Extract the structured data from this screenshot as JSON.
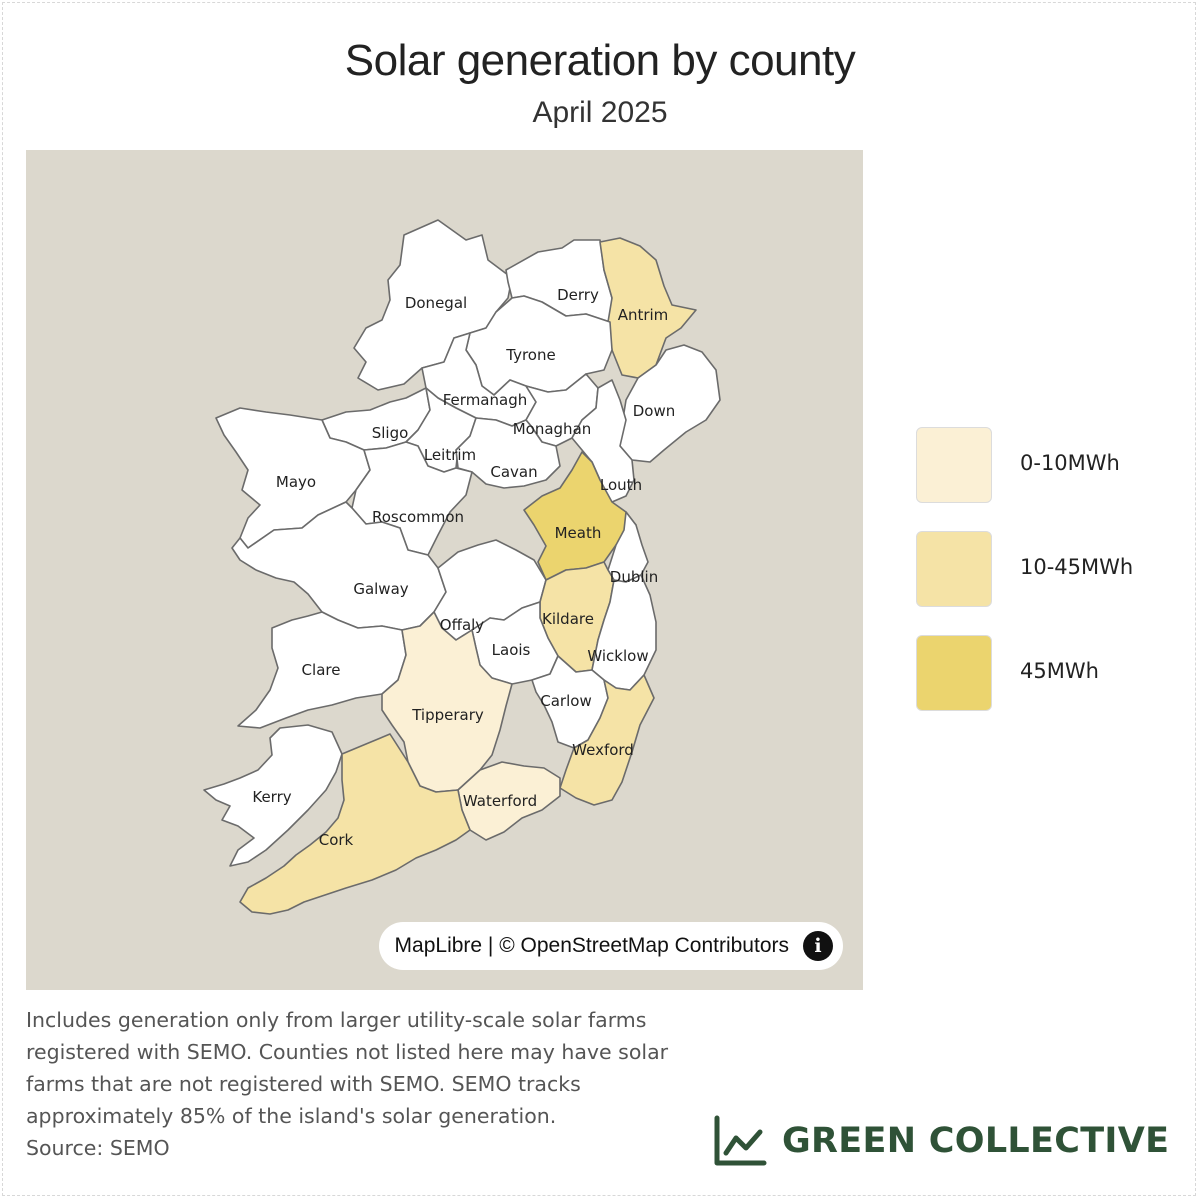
{
  "title": "Solar generation by county",
  "subtitle": "April 2025",
  "colors": {
    "background": "#ffffff",
    "map_background": "#dcd8cd",
    "no_data": "#ffffff",
    "border": "#6b6b6b",
    "brand": "#2f5237"
  },
  "legend": [
    {
      "label": "0-10MWh",
      "color": "#fbf0d5"
    },
    {
      "label": "10-45MWh",
      "color": "#f5e3a6"
    },
    {
      "label": "45MWh",
      "color": "#ebd46e"
    }
  ],
  "counties": [
    {
      "name": "Donegal",
      "category": null
    },
    {
      "name": "Derry",
      "category": null
    },
    {
      "name": "Antrim",
      "category": "10-45MWh"
    },
    {
      "name": "Tyrone",
      "category": null
    },
    {
      "name": "Fermanagh",
      "category": null
    },
    {
      "name": "Down",
      "category": null
    },
    {
      "name": "Sligo",
      "category": null
    },
    {
      "name": "Monaghan",
      "category": null
    },
    {
      "name": "Leitrim",
      "category": null
    },
    {
      "name": "Cavan",
      "category": null
    },
    {
      "name": "Mayo",
      "category": null
    },
    {
      "name": "Louth",
      "category": null
    },
    {
      "name": "Roscommon",
      "category": null
    },
    {
      "name": "Meath",
      "category": "45MWh"
    },
    {
      "name": "Galway",
      "category": null
    },
    {
      "name": "Dublin",
      "category": null
    },
    {
      "name": "Offaly",
      "category": null
    },
    {
      "name": "Kildare",
      "category": "10-45MWh"
    },
    {
      "name": "Laois",
      "category": null
    },
    {
      "name": "Wicklow",
      "category": null
    },
    {
      "name": "Clare",
      "category": null
    },
    {
      "name": "Carlow",
      "category": null
    },
    {
      "name": "Tipperary",
      "category": "0-10MWh"
    },
    {
      "name": "Wexford",
      "category": "10-45MWh"
    },
    {
      "name": "Kerry",
      "category": null
    },
    {
      "name": "Waterford",
      "category": "0-10MWh"
    },
    {
      "name": "Cork",
      "category": "10-45MWh"
    }
  ],
  "attribution": {
    "text": "MapLibre | © OpenStreetMap Contributors",
    "icon": "info-icon"
  },
  "note": {
    "body": "Includes generation only from larger utility-scale solar farms registered with SEMO. Counties not listed here may have solar farms that are not registered with SEMO. SEMO tracks approximately 85% of the island's solar generation.",
    "source": "Source: SEMO"
  },
  "brand": {
    "name": "GREEN COLLECTIVE",
    "icon": "line-chart-icon"
  }
}
